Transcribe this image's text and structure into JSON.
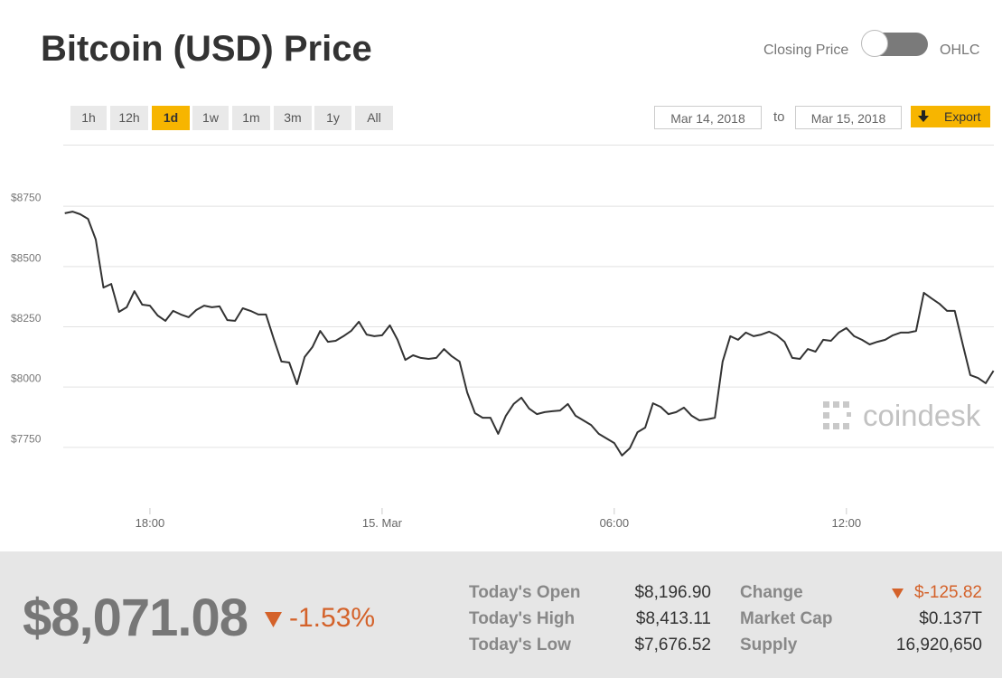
{
  "header": {
    "title": "Bitcoin (USD) Price",
    "toggle_left": "Closing Price",
    "toggle_right": "OHLC"
  },
  "range_buttons": [
    "1h",
    "12h",
    "1d",
    "1w",
    "1m",
    "3m",
    "1y",
    "All"
  ],
  "date_range": {
    "from": "Mar 14, 2018",
    "separator": "to",
    "to": "Mar 15, 2018",
    "export": "Export"
  },
  "chart_data": {
    "type": "line",
    "color": "#333333",
    "grid": true,
    "watermark": "coindesk",
    "x": [
      -8.2,
      -8,
      -7.8,
      -7.6,
      -7.4,
      -7.2,
      -7,
      -6.8,
      -6.6,
      -6.4,
      -6.2,
      -6,
      -5.8,
      -5.6,
      -5.4,
      -5.2,
      -5,
      -4.8,
      -4.6,
      -4.4,
      -4.2,
      -4,
      -3.8,
      -3.6,
      -3.4,
      -3.2,
      -3,
      -2.8,
      -2.6,
      -2.4,
      -2.2,
      -2,
      -1.8,
      -1.6,
      -1.4,
      -1.2,
      -1,
      -0.8,
      -0.6,
      -0.4,
      -0.2,
      0,
      0.2,
      0.4,
      0.6,
      0.8,
      1,
      1.2,
      1.4,
      1.6,
      1.8,
      2,
      2.2,
      2.4,
      2.6,
      2.8,
      3,
      3.2,
      3.4,
      3.6,
      3.8,
      4,
      4.2,
      4.4,
      4.6,
      4.8,
      5,
      5.2,
      5.4,
      5.6,
      5.8,
      6,
      6.2,
      6.4,
      6.6,
      6.8,
      7,
      7.2,
      7.4,
      7.6,
      7.8,
      8,
      8.2,
      8.4,
      8.6,
      8.8,
      9,
      9.2,
      9.4,
      9.6,
      9.8,
      10,
      10.2,
      10.4,
      10.6,
      10.8,
      11,
      11.2,
      11.4,
      11.6,
      11.8,
      12,
      12.2,
      12.4,
      12.6,
      12.8,
      13,
      13.2,
      13.4,
      13.6,
      13.8,
      14,
      14.2,
      14.4,
      14.6,
      14.8,
      15,
      15.2,
      15.4,
      15.6,
      15.8
    ],
    "values": [
      8719,
      8726,
      8715,
      8696,
      8610,
      8411,
      8426,
      8310,
      8329,
      8396,
      8340,
      8336,
      8295,
      8273,
      8314,
      8299,
      8288,
      8318,
      8336,
      8329,
      8333,
      8276,
      8273,
      8325,
      8314,
      8299,
      8299,
      8198,
      8104,
      8100,
      8010,
      8123,
      8164,
      8231,
      8186,
      8190,
      8209,
      8231,
      8269,
      8216,
      8209,
      8213,
      8254,
      8194,
      8111,
      8130,
      8119,
      8115,
      8119,
      8156,
      8126,
      8104,
      7976,
      7890,
      7871,
      7871,
      7804,
      7879,
      7928,
      7954,
      7909,
      7886,
      7894,
      7898,
      7901,
      7928,
      7879,
      7860,
      7841,
      7804,
      7785,
      7766,
      7714,
      7744,
      7811,
      7830,
      7931,
      7916,
      7886,
      7894,
      7913,
      7879,
      7860,
      7864,
      7871,
      8104,
      8209,
      8194,
      8224,
      8209,
      8216,
      8228,
      8213,
      8186,
      8119,
      8115,
      8156,
      8145,
      8194,
      8190,
      8224,
      8243,
      8209,
      8194,
      8175,
      8186,
      8194,
      8213,
      8224,
      8224,
      8231,
      8389,
      8366,
      8344,
      8314,
      8314,
      8179,
      8048,
      8036,
      8014,
      8066
    ],
    "ylim": [
      7500,
      9000
    ],
    "yticks": [
      {
        "value": 7750,
        "label": "$7750"
      },
      {
        "value": 8000,
        "label": "$8000"
      },
      {
        "value": 8250,
        "label": "$8250"
      },
      {
        "value": 8500,
        "label": "$8500"
      },
      {
        "value": 8750,
        "label": "$8750"
      }
    ],
    "xlim": [
      -8.24,
      15.81
    ],
    "xticks": [
      {
        "value": -6,
        "label": "18:00"
      },
      {
        "value": 0,
        "label": "15. Mar"
      },
      {
        "value": 6,
        "label": "06:00"
      },
      {
        "value": 12,
        "label": "12:00"
      }
    ]
  },
  "summary": {
    "price": "$8,071.08",
    "change_pct": "-1.53%",
    "stats": [
      [
        {
          "label": "Today's Open",
          "value": "$8,196.90"
        },
        {
          "label": "Change",
          "value": "$-125.82"
        }
      ],
      [
        {
          "label": "Today's High",
          "value": "$8,413.11"
        },
        {
          "label": "Market Cap",
          "value": "$0.137T"
        }
      ],
      [
        {
          "label": "Today's Low",
          "value": "$7,676.52"
        },
        {
          "label": "Supply",
          "value": "16,920,650"
        }
      ]
    ]
  }
}
